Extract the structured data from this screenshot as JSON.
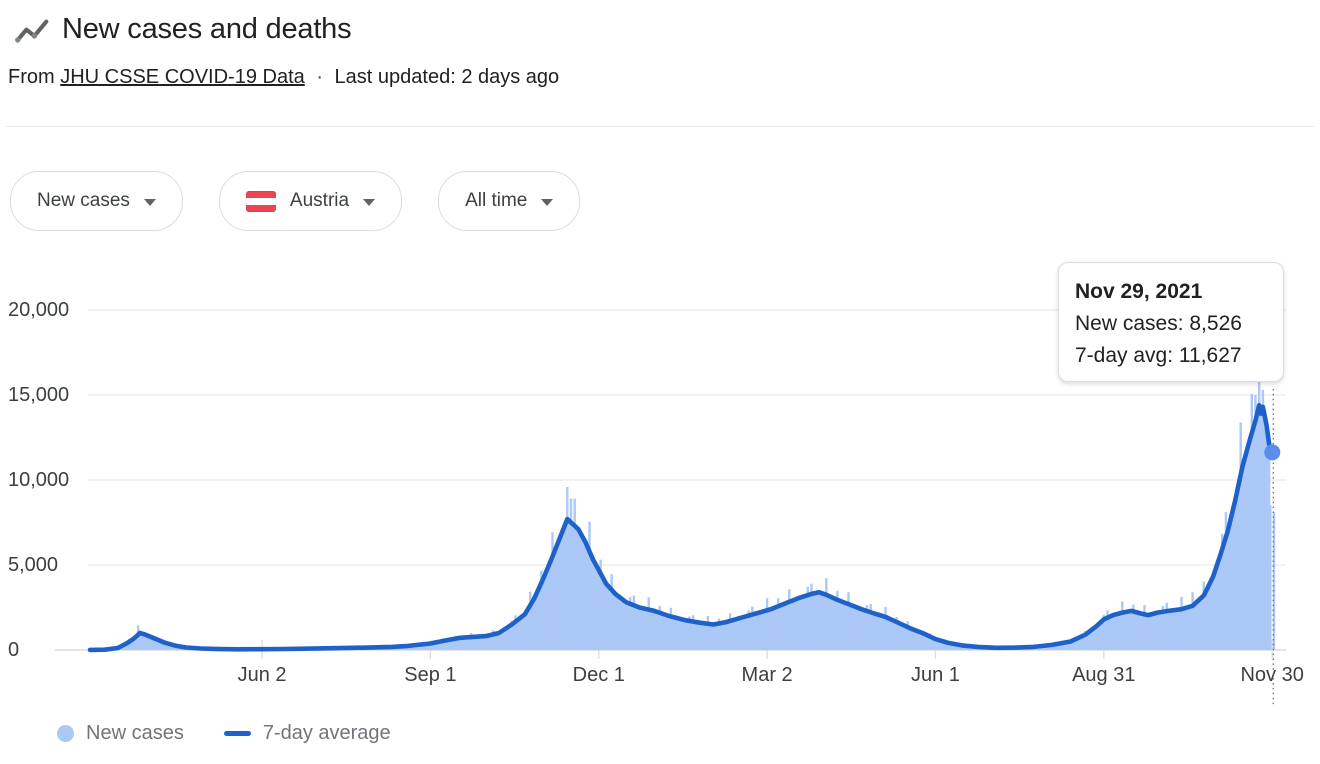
{
  "header": {
    "title": "New cases and deaths",
    "source_prefix": "From",
    "source_link": "JHU CSSE COVID-19 Data",
    "separator": "·",
    "updated": "Last updated: 2 days ago"
  },
  "filters": [
    {
      "label": "New cases"
    },
    {
      "label": "Austria",
      "flag": "austria-flag"
    },
    {
      "label": "All time"
    }
  ],
  "tooltip": {
    "title": "Nov 29, 2021",
    "line1": "New cases: 8,526",
    "line2": "7-day avg: 11,627"
  },
  "legend": [
    {
      "label": "New cases"
    },
    {
      "label": "7-day average"
    }
  ],
  "colors": {
    "bar_fill": "#abc8f7",
    "line": "#1e62c9",
    "dot": "#5b8def",
    "grid": "#e8eaed",
    "axis": "#dadce0",
    "dotted_line": "#757575"
  },
  "chart_data": {
    "type": "area",
    "title": "New cases over time, Austria, all time",
    "xlabel": "",
    "ylabel": "",
    "ylim": [
      0,
      20000
    ],
    "grid": "horizontal",
    "legend_position": "bottom",
    "y_ticks": [
      {
        "label": "20,000",
        "value": 20000
      },
      {
        "label": "15,000",
        "value": 15000
      },
      {
        "label": "10,000",
        "value": 10000
      },
      {
        "label": "5,000",
        "value": 5000
      },
      {
        "label": "0",
        "value": 0
      }
    ],
    "x_ticks": [
      {
        "label": "Jun 2",
        "day": 93
      },
      {
        "label": "Sep 1",
        "day": 184
      },
      {
        "label": "Dec 1",
        "day": 275
      },
      {
        "label": "Mar 2",
        "day": 366
      },
      {
        "label": "Jun 1",
        "day": 457
      },
      {
        "label": "Aug 31",
        "day": 548
      },
      {
        "label": "Nov 30",
        "day": 639
      }
    ],
    "series": [
      {
        "name": "New cases",
        "type": "bars-daily"
      },
      {
        "name": "7-day average",
        "type": "line"
      }
    ],
    "avg_series": [
      [
        0,
        5
      ],
      [
        8,
        15
      ],
      [
        15,
        120
      ],
      [
        20,
        400
      ],
      [
        24,
        700
      ],
      [
        27,
        1000
      ],
      [
        30,
        900
      ],
      [
        34,
        720
      ],
      [
        40,
        450
      ],
      [
        46,
        260
      ],
      [
        52,
        150
      ],
      [
        60,
        90
      ],
      [
        70,
        55
      ],
      [
        80,
        40
      ],
      [
        93,
        45
      ],
      [
        105,
        60
      ],
      [
        120,
        85
      ],
      [
        135,
        110
      ],
      [
        150,
        140
      ],
      [
        163,
        180
      ],
      [
        172,
        240
      ],
      [
        184,
        380
      ],
      [
        192,
        560
      ],
      [
        200,
        720
      ],
      [
        207,
        770
      ],
      [
        214,
        820
      ],
      [
        221,
        1000
      ],
      [
        228,
        1500
      ],
      [
        235,
        2100
      ],
      [
        240,
        3000
      ],
      [
        245,
        4200
      ],
      [
        250,
        5500
      ],
      [
        254,
        6600
      ],
      [
        258,
        7700
      ],
      [
        261,
        7400
      ],
      [
        264,
        7100
      ],
      [
        268,
        6300
      ],
      [
        272,
        5300
      ],
      [
        275,
        4700
      ],
      [
        279,
        3900
      ],
      [
        284,
        3300
      ],
      [
        290,
        2800
      ],
      [
        297,
        2500
      ],
      [
        305,
        2300
      ],
      [
        313,
        2000
      ],
      [
        322,
        1750
      ],
      [
        330,
        1600
      ],
      [
        337,
        1500
      ],
      [
        344,
        1650
      ],
      [
        352,
        1900
      ],
      [
        360,
        2150
      ],
      [
        368,
        2400
      ],
      [
        376,
        2750
      ],
      [
        383,
        3050
      ],
      [
        390,
        3300
      ],
      [
        394,
        3400
      ],
      [
        398,
        3250
      ],
      [
        404,
        2950
      ],
      [
        410,
        2700
      ],
      [
        417,
        2400
      ],
      [
        424,
        2150
      ],
      [
        430,
        1950
      ],
      [
        437,
        1600
      ],
      [
        444,
        1250
      ],
      [
        450,
        1000
      ],
      [
        457,
        640
      ],
      [
        464,
        420
      ],
      [
        472,
        260
      ],
      [
        480,
        180
      ],
      [
        490,
        130
      ],
      [
        500,
        140
      ],
      [
        510,
        180
      ],
      [
        520,
        300
      ],
      [
        530,
        500
      ],
      [
        538,
        900
      ],
      [
        544,
        1400
      ],
      [
        548,
        1800
      ],
      [
        553,
        2050
      ],
      [
        558,
        2200
      ],
      [
        563,
        2300
      ],
      [
        568,
        2150
      ],
      [
        572,
        2050
      ],
      [
        577,
        2200
      ],
      [
        583,
        2300
      ],
      [
        590,
        2400
      ],
      [
        596,
        2600
      ],
      [
        602,
        3200
      ],
      [
        607,
        4300
      ],
      [
        611,
        5600
      ],
      [
        615,
        7000
      ],
      [
        619,
        8800
      ],
      [
        623,
        10800
      ],
      [
        627,
        12400
      ],
      [
        630,
        13500
      ],
      [
        632,
        14400
      ],
      [
        633,
        13900
      ],
      [
        634,
        14300
      ],
      [
        636,
        13200
      ],
      [
        638,
        11627
      ]
    ],
    "bar_noise": [
      0.5,
      0.85,
      1.15,
      1.22,
      1.02,
      0.62,
      0.98,
      1.3,
      0.9,
      0.55,
      1.18,
      1.05,
      0.72,
      1.26,
      0.95,
      0.6
    ],
    "bar_spikes": {
      "26": 1450,
      "226": 1500,
      "258": 9586,
      "260": 8900,
      "390": 3900,
      "596": 3400,
      "630": 15000,
      "632": 15900,
      "634": 15300,
      "638": 8526,
      "640": 8100
    },
    "hover": {
      "day": 638,
      "avg_value": 11627,
      "daily_value": 8526,
      "date": "Nov 29, 2021"
    }
  }
}
